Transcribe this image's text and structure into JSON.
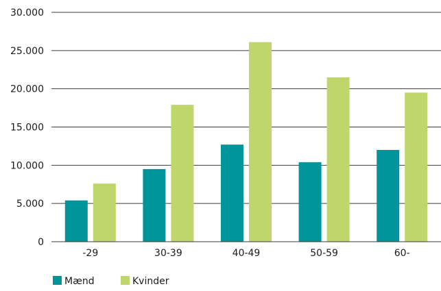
{
  "chart_data": {
    "type": "bar",
    "categories": [
      "-29",
      "30-39",
      "40-49",
      "50-59",
      "60-"
    ],
    "series": [
      {
        "name": "Mænd",
        "color": "#00959a",
        "values": [
          5400,
          9500,
          12700,
          10400,
          12000
        ]
      },
      {
        "name": "Kvinder",
        "color": "#bed66b",
        "values": [
          7600,
          17900,
          26100,
          21500,
          19500
        ]
      }
    ],
    "y_ticks": [
      "0",
      "5.000",
      "10.000",
      "15.000",
      "20.000",
      "25.000",
      "30.000"
    ],
    "ylim": [
      0,
      30000
    ],
    "grid": true,
    "legend_position": "bottom-left",
    "title": "",
    "xlabel": "",
    "ylabel": ""
  }
}
